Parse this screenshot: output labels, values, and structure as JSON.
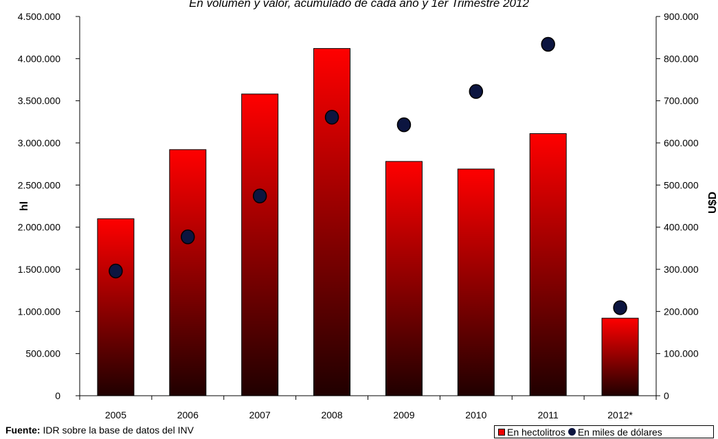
{
  "subtitle": "En volumen y valor, acumulado de cada año y 1er Trimestre 2012",
  "source_label": "Fuente:",
  "source_text": "IDR sobre la base de datos del INV",
  "colors": {
    "bar_top": "#ff0000",
    "bar_bottom": "#200000",
    "marker": "#0c1540",
    "marker_stroke": "#000000"
  },
  "chart_data": {
    "type": "bar",
    "categories": [
      "2005",
      "2006",
      "2007",
      "2008",
      "2009",
      "2010",
      "2011",
      "2012*"
    ],
    "series": [
      {
        "name": "En hectolitros",
        "type": "bar",
        "axis": "left",
        "values": [
          2100000,
          2920000,
          3580000,
          4120000,
          2780000,
          2690000,
          3110000,
          920000
        ]
      },
      {
        "name": "En miles de dólares",
        "type": "scatter",
        "axis": "right",
        "values": [
          296000,
          377000,
          474000,
          661000,
          643000,
          722000,
          834000,
          209000
        ]
      }
    ],
    "ylabel": "hl",
    "y2label": "U$D",
    "ylim": [
      0,
      4500000
    ],
    "y2lim": [
      0,
      900000
    ],
    "yticks": [
      "0",
      "500.000",
      "1.000.000",
      "1.500.000",
      "2.000.000",
      "2.500.000",
      "3.000.000",
      "3.500.000",
      "4.000.000",
      "4.500.000"
    ],
    "y2ticks": [
      "0",
      "100.000",
      "200.000",
      "300.000",
      "400.000",
      "500.000",
      "600.000",
      "700.000",
      "800.000",
      "900.000"
    ],
    "legend_position": "bottom-right",
    "grid": false
  }
}
